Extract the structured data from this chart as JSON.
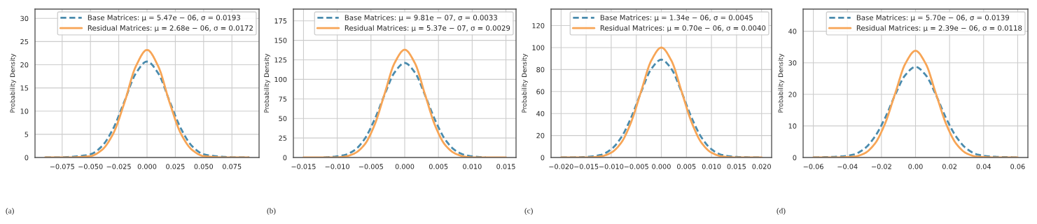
{
  "chart_data": [
    {
      "type": "line",
      "ylabel": "Probability Density",
      "annotations": [
        "(a)"
      ],
      "x": [
        -0.09,
        -0.08,
        -0.07,
        -0.06,
        -0.05,
        -0.04,
        -0.03,
        -0.02,
        -0.01,
        0,
        0.01,
        0.02,
        0.03,
        0.04,
        0.05,
        0.06,
        0.07,
        0.08,
        0.09
      ],
      "series": [
        {
          "name": "Base Matrices: μ = 5.47e − 06, σ = 0.0193",
          "color": "#4a8bad",
          "line_style": "dashed",
          "values": [
            0,
            0,
            0.1,
            0.3,
            0.7,
            2.4,
            6.2,
            12.1,
            18.1,
            20.7,
            18.1,
            12.1,
            6.2,
            2.4,
            0.7,
            0.3,
            0.1,
            0,
            0
          ]
        },
        {
          "name": "Residual Matrices: μ = 2.68e − 06, σ = 0.0172",
          "color": "#f7a556",
          "line_style": "solid",
          "values": [
            0,
            0,
            0,
            0.1,
            0.3,
            1.6,
            5.1,
            11.8,
            19.6,
            23.2,
            19.6,
            11.8,
            5.1,
            1.6,
            0.3,
            0.1,
            0,
            0,
            0
          ]
        }
      ],
      "xlim": [
        -0.099,
        0.099
      ],
      "ylim": [
        0,
        32
      ],
      "xticks": [
        {
          "value": -0.075,
          "label": "−0.075"
        },
        {
          "value": -0.05,
          "label": "−0.050"
        },
        {
          "value": -0.025,
          "label": "−0.025"
        },
        {
          "value": 0,
          "label": "0.000"
        },
        {
          "value": 0.025,
          "label": "0.025"
        },
        {
          "value": 0.05,
          "label": "0.050"
        },
        {
          "value": 0.075,
          "label": "0.075"
        }
      ],
      "yticks": [
        0,
        5,
        10,
        15,
        20,
        25,
        30
      ],
      "grid": true,
      "legend": "top right"
    },
    {
      "type": "line",
      "ylabel": "Probability Density",
      "annotations": [
        "(b)"
      ],
      "x": [
        -0.015,
        -0.0135,
        -0.012,
        -0.0105,
        -0.009,
        -0.0075,
        -0.006,
        -0.0045,
        -0.003,
        -0.0015,
        0,
        0.0015,
        0.003,
        0.0045,
        0.006,
        0.0075,
        0.009,
        0.0105,
        0.012,
        0.0135,
        0.015
      ],
      "series": [
        {
          "name": "Base Matrices: μ = 9.81e − 07, σ = 0.0033",
          "color": "#4a8bad",
          "line_style": "dashed",
          "values": [
            null,
            null,
            0,
            1,
            3,
            9,
            23,
            48,
            80,
            109,
            121,
            109,
            80,
            48,
            23,
            9,
            3,
            1,
            0,
            null,
            null
          ]
        },
        {
          "name": "Residual Matrices: μ = 5.37e − 07, σ = 0.0029",
          "color": "#f7a556",
          "line_style": "solid",
          "values": [
            0,
            0,
            0,
            0,
            1,
            5,
            16,
            41,
            81,
            121,
            138,
            121,
            81,
            41,
            16,
            5,
            1,
            0,
            0,
            0,
            0
          ]
        }
      ],
      "xlim": [
        -0.0165,
        0.0165
      ],
      "ylim": [
        0,
        190
      ],
      "xticks": [
        {
          "value": -0.015,
          "label": "−0.015"
        },
        {
          "value": -0.01,
          "label": "−0.010"
        },
        {
          "value": -0.005,
          "label": "−0.005"
        },
        {
          "value": 0,
          "label": "0.000"
        },
        {
          "value": 0.005,
          "label": "0.005"
        },
        {
          "value": 0.01,
          "label": "0.010"
        },
        {
          "value": 0.015,
          "label": "0.015"
        }
      ],
      "yticks": [
        0,
        25,
        50,
        75,
        100,
        125,
        150,
        175
      ],
      "grid": true,
      "legend": "top right"
    },
    {
      "type": "line",
      "ylabel": "Probability Density",
      "annotations": [
        "(c)"
      ],
      "x": [
        -0.02,
        -0.018,
        -0.016,
        -0.014,
        -0.012,
        -0.01,
        -0.008,
        -0.006,
        -0.004,
        -0.002,
        0,
        0.002,
        0.004,
        0.006,
        0.008,
        0.01,
        0.012,
        0.014,
        0.016,
        0.018,
        0.02
      ],
      "series": [
        {
          "name": "Base Matrices: μ = 1.34e − 06, σ = 0.0045",
          "color": "#4a8bad",
          "line_style": "dashed",
          "values": [
            0,
            0.1,
            0.3,
            0.9,
            2.5,
            7.5,
            18.3,
            36.6,
            60.0,
            80.6,
            89,
            80.6,
            60.0,
            36.6,
            18.3,
            7.5,
            2.5,
            0.9,
            0.3,
            0.1,
            0
          ]
        },
        {
          "name": "Residual Matrices: μ = 0.70e − 06, σ = 0.0040",
          "color": "#f7a556",
          "line_style": "solid",
          "values": [
            0,
            0,
            0,
            0.2,
            1.1,
            4.4,
            13.5,
            32.5,
            60.7,
            88.2,
            100,
            88.2,
            60.7,
            32.5,
            13.5,
            4.4,
            1.1,
            0.2,
            0,
            0,
            0
          ]
        }
      ],
      "xlim": [
        -0.022,
        0.022
      ],
      "ylim": [
        0,
        135
      ],
      "xticks": [
        {
          "value": -0.02,
          "label": "−0.020"
        },
        {
          "value": -0.015,
          "label": "−0.015"
        },
        {
          "value": -0.01,
          "label": "−0.010"
        },
        {
          "value": -0.005,
          "label": "−0.005"
        },
        {
          "value": 0,
          "label": "0.000"
        },
        {
          "value": 0.005,
          "label": "0.005"
        },
        {
          "value": 0.01,
          "label": "0.010"
        },
        {
          "value": 0.015,
          "label": "0.015"
        },
        {
          "value": 0.02,
          "label": "0.020"
        }
      ],
      "yticks": [
        0,
        20,
        40,
        60,
        80,
        100,
        120
      ],
      "grid": true,
      "legend": "top right"
    },
    {
      "type": "line",
      "ylabel": "Probability Density",
      "annotations": [
        "(d)"
      ],
      "x": [
        -0.06,
        -0.054,
        -0.048,
        -0.042,
        -0.036,
        -0.03,
        -0.024,
        -0.018,
        -0.012,
        -0.006,
        0,
        0.006,
        0.012,
        0.018,
        0.024,
        0.03,
        0.036,
        0.042,
        0.048,
        0.054,
        0.06
      ],
      "series": [
        {
          "name": "Base Matrices: μ = 5.70e − 06, σ = 0.0139",
          "color": "#4a8bad",
          "line_style": "dashed",
          "values": [
            0,
            0.1,
            0.2,
            0.4,
            1.0,
            2.8,
            6.5,
            12.4,
            19.8,
            26.1,
            28.7,
            26.1,
            19.8,
            12.4,
            6.5,
            2.8,
            1.0,
            0.4,
            0.2,
            0.1,
            0
          ]
        },
        {
          "name": "Residual Matrices: μ = 2.39e − 06, σ = 0.0118",
          "color": "#f7a556",
          "line_style": "solid",
          "values": [
            0,
            0,
            0,
            0.1,
            0.3,
            1.3,
            4.3,
            10.6,
            20.2,
            29.7,
            33.8,
            29.7,
            20.2,
            10.6,
            4.3,
            1.3,
            0.3,
            0.1,
            0,
            0,
            0
          ]
        }
      ],
      "xlim": [
        -0.066,
        0.066
      ],
      "ylim": [
        0,
        47
      ],
      "xticks": [
        {
          "value": -0.06,
          "label": "−0.06"
        },
        {
          "value": -0.04,
          "label": "−0.04"
        },
        {
          "value": -0.02,
          "label": "−0.02"
        },
        {
          "value": 0,
          "label": "0.00"
        },
        {
          "value": 0.02,
          "label": "0.02"
        },
        {
          "value": 0.04,
          "label": "0.04"
        },
        {
          "value": 0.06,
          "label": "0.06"
        }
      ],
      "yticks": [
        0,
        10,
        20,
        30,
        40
      ],
      "grid": true,
      "legend": "top right"
    }
  ]
}
